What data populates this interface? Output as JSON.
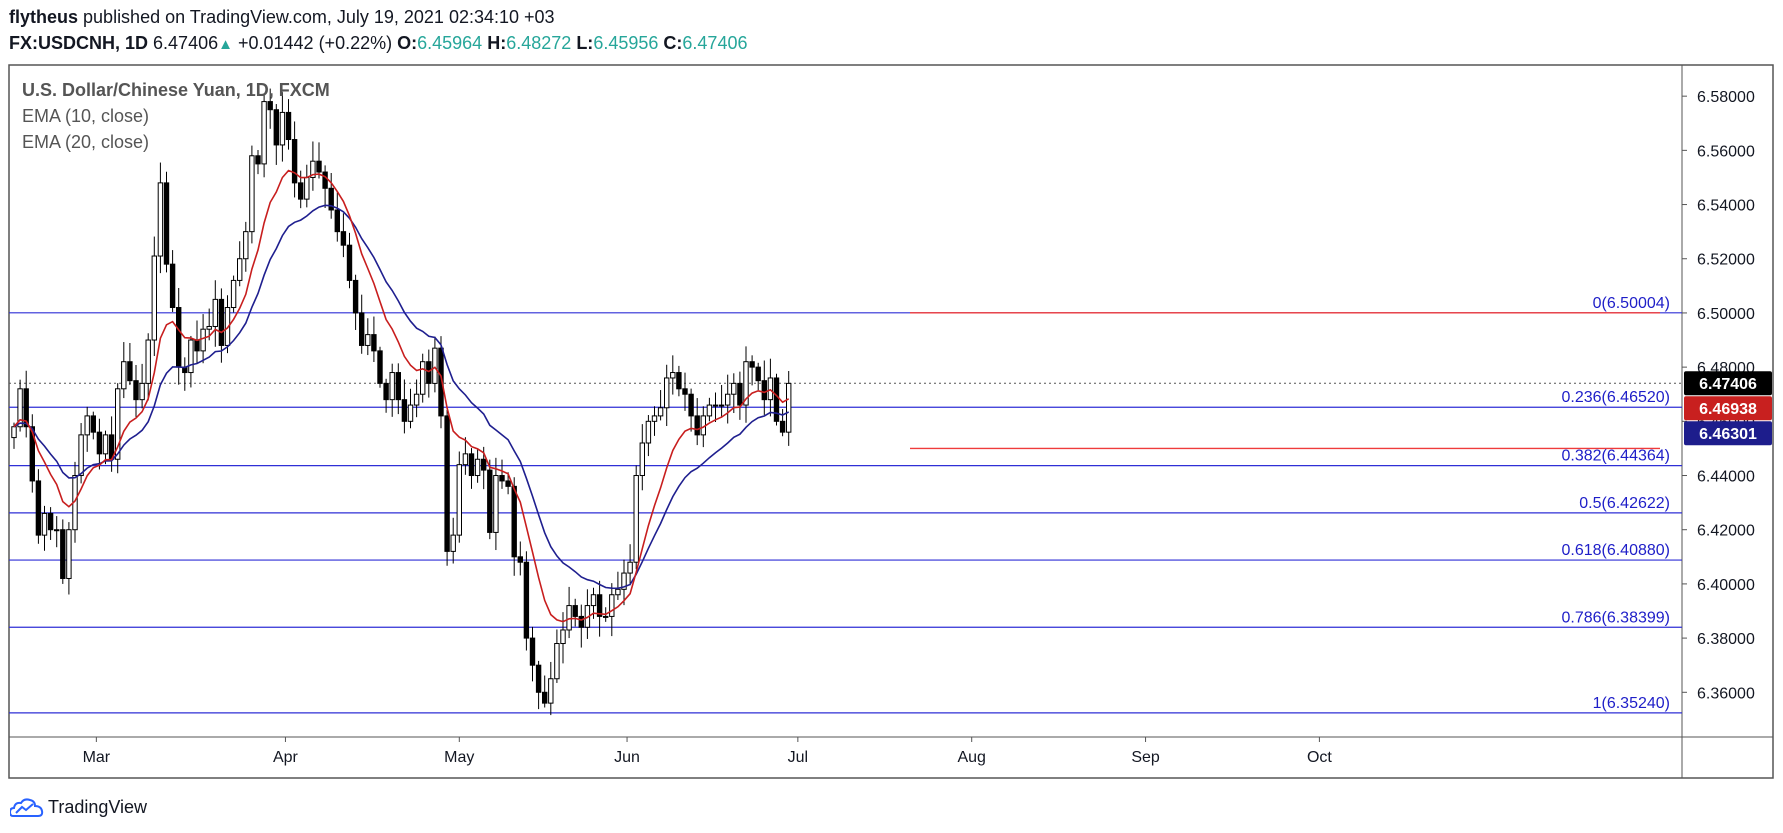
{
  "header": {
    "author": "flytheus",
    "published_text": "published on TradingView.com, July 19, 2021 02:34:10 +03",
    "symbol": "FX:USDCNH, 1D",
    "last": "6.47406",
    "arrow": "▲",
    "change": "+0.01442 (+0.22%)",
    "o_label": "O:",
    "o_value": "6.45964",
    "h_label": "H:",
    "h_value": "6.48272",
    "l_label": "L:",
    "l_value": "6.45956",
    "c_label": "C:",
    "c_value": "6.47406"
  },
  "legend": {
    "title": "U.S. Dollar/Chinese Yuan, 1D, FXCM",
    "ema10": "EMA (10, close)",
    "ema20": "EMA (20, close)"
  },
  "footer": {
    "brand": "TradingView"
  },
  "colors": {
    "fib_line": "#2f2fd6",
    "fib_label": "#1e1ec8",
    "red_line": "#ef3b3b",
    "ema10": "#c81e1e",
    "ema20": "#1f1f8f",
    "candle": "#000000",
    "last_price_bg": "#000000",
    "ema10_bg": "#c8201f",
    "ema20_bg": "#1d1d8c"
  },
  "chart_data": {
    "type": "candlestick",
    "ylim": [
      6.3435,
      6.5915
    ],
    "x_ticks": [
      "Mar",
      "Apr",
      "May",
      "Jun",
      "Jul",
      "Aug",
      "Sep",
      "Oct"
    ],
    "y_ticks": [
      "6.58000",
      "6.56000",
      "6.54000",
      "6.52000",
      "6.50000",
      "6.48000",
      "6.46000",
      "6.44000",
      "6.42000",
      "6.40000",
      "6.38000",
      "6.36000"
    ],
    "fib_levels": [
      {
        "label": "0(6.50004)",
        "value": 6.50004
      },
      {
        "label": "0.236(6.46520)",
        "value": 6.4652
      },
      {
        "label": "0.382(6.44364)",
        "value": 6.44364
      },
      {
        "label": "0.5(6.42622)",
        "value": 6.42622
      },
      {
        "label": "0.618(6.40880)",
        "value": 6.4088
      },
      {
        "label": "0.786(6.38399)",
        "value": 6.38399
      },
      {
        "label": "1(6.35240)",
        "value": 6.3524
      }
    ],
    "red_levels": [
      6.50004,
      6.45
    ],
    "last_price_line": 6.47406,
    "price_labels": [
      {
        "label": "6.47406",
        "value": 6.47406,
        "kind": "last"
      },
      {
        "label": "6.46938",
        "value": 6.46938,
        "kind": "ema10"
      },
      {
        "label": "6.46301",
        "value": 6.46301,
        "kind": "ema20"
      }
    ],
    "closes": [
      6.458,
      6.472,
      6.458,
      6.438,
      6.418,
      6.426,
      6.42,
      6.42,
      6.402,
      6.42,
      6.44,
      6.455,
      6.462,
      6.456,
      6.448,
      6.455,
      6.446,
      6.472,
      6.482,
      6.475,
      6.468,
      6.474,
      6.49,
      6.521,
      6.548,
      6.518,
      6.502,
      6.48,
      6.478,
      6.49,
      6.486,
      6.494,
      6.495,
      6.505,
      6.488,
      6.502,
      6.512,
      6.52,
      6.53,
      6.558,
      6.555,
      6.578,
      6.575,
      6.562,
      6.574,
      6.564,
      6.548,
      6.542,
      6.55,
      6.556,
      6.552,
      6.546,
      6.538,
      6.53,
      6.525,
      6.512,
      6.5,
      6.488,
      6.492,
      6.486,
      6.474,
      6.468,
      6.478,
      6.468,
      6.46,
      6.466,
      6.47,
      6.482,
      6.474,
      6.487,
      6.462,
      6.412,
      6.418,
      6.444,
      6.448,
      6.44,
      6.446,
      6.442,
      6.419,
      6.44,
      6.438,
      6.436,
      6.41,
      6.408,
      6.38,
      6.37,
      6.36,
      6.356,
      6.365,
      6.378,
      6.383,
      6.392,
      6.388,
      6.384,
      6.392,
      6.396,
      6.388,
      6.388,
      6.396,
      6.398,
      6.404,
      6.408,
      6.44,
      6.452,
      6.46,
      6.462,
      6.465,
      6.476,
      6.478,
      6.472,
      6.47,
      6.462,
      6.455,
      6.462,
      6.466,
      6.466,
      6.466,
      6.47,
      6.474,
      6.466,
      6.482,
      6.48,
      6.475,
      6.468,
      6.476,
      6.46,
      6.456,
      6.474
    ]
  }
}
